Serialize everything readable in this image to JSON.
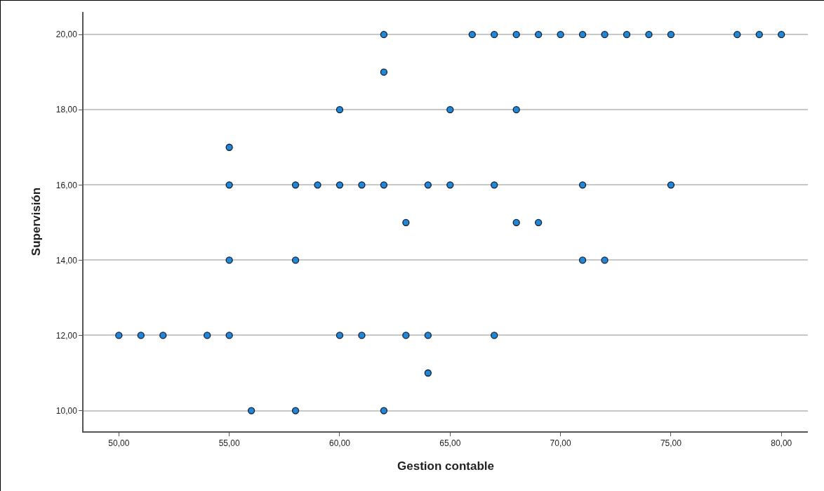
{
  "chart_data": {
    "type": "scatter",
    "xlabel": "Gestion contable",
    "ylabel": "Supervisión",
    "xlim": [
      48.4,
      81.2
    ],
    "ylim": [
      9.45,
      20.6
    ],
    "xticks": [
      {
        "value": 50,
        "label": "50,00"
      },
      {
        "value": 55,
        "label": "55,00"
      },
      {
        "value": 60,
        "label": "60,00"
      },
      {
        "value": 65,
        "label": "65,00"
      },
      {
        "value": 70,
        "label": "70,00"
      },
      {
        "value": 75,
        "label": "75,00"
      },
      {
        "value": 80,
        "label": "80,00"
      }
    ],
    "yticks": [
      {
        "value": 10,
        "label": "10,00"
      },
      {
        "value": 12,
        "label": "12,00"
      },
      {
        "value": 14,
        "label": "14,00"
      },
      {
        "value": 16,
        "label": "16,00"
      },
      {
        "value": 18,
        "label": "18,00"
      },
      {
        "value": 20,
        "label": "20,00"
      }
    ],
    "grid": "y",
    "marker": "circle",
    "series": [
      {
        "color": "#1e88d8",
        "x": [
          62,
          66,
          67,
          68,
          69,
          70,
          71,
          72,
          73,
          74,
          75,
          78,
          79,
          80,
          62,
          60,
          65,
          68,
          55,
          55,
          58,
          59,
          60,
          61,
          62,
          64,
          65,
          67,
          71,
          75,
          63,
          68,
          69,
          55,
          58,
          71,
          72,
          50,
          51,
          52,
          54,
          55,
          60,
          61,
          63,
          64,
          67,
          64,
          56,
          58,
          62
        ],
        "values": [
          20,
          20,
          20,
          20,
          20,
          20,
          20,
          20,
          20,
          20,
          20,
          20,
          20,
          20,
          19,
          18,
          18,
          18,
          17,
          16,
          16,
          16,
          16,
          16,
          16,
          16,
          16,
          16,
          16,
          16,
          15,
          15,
          15,
          14,
          14,
          14,
          14,
          12,
          12,
          12,
          12,
          12,
          12,
          12,
          12,
          12,
          12,
          11,
          10,
          10,
          10
        ]
      }
    ]
  }
}
